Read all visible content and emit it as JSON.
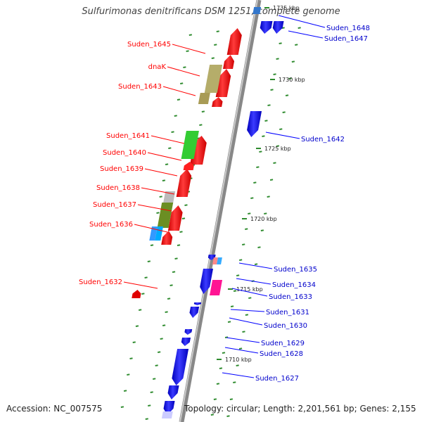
{
  "title": "Sulfurimonas denitrificans DSM 1251, complete genome",
  "accession": "Accession: NC_007575",
  "topology": "Topology: circular; Length: 2,201,561 bp; Genes: 2,155",
  "colors": {
    "forward": "#ff0000",
    "reverse": "#0000ff",
    "backbone": "#999999",
    "dots": "#2e8b2e"
  },
  "kbp_marks": [
    "1735 kbp",
    "1730 kbp",
    "1725 kbp",
    "1720 kbp",
    "1715 kbp",
    "1710 kbp"
  ],
  "left_labels": [
    "Suden_1645",
    "dnaK",
    "Suden_1643",
    "Suden_1641",
    "Suden_1640",
    "Suden_1639",
    "Suden_1638",
    "Suden_1637",
    "Suden_1636",
    "Suden_1632"
  ],
  "right_labels": [
    "Suden_1648",
    "Suden_1647",
    "Suden_1642",
    "Suden_1635",
    "Suden_1634",
    "Suden_1633",
    "Suden_1631",
    "Suden_1630",
    "Suden_1629",
    "Suden_1628",
    "Suden_1627"
  ]
}
